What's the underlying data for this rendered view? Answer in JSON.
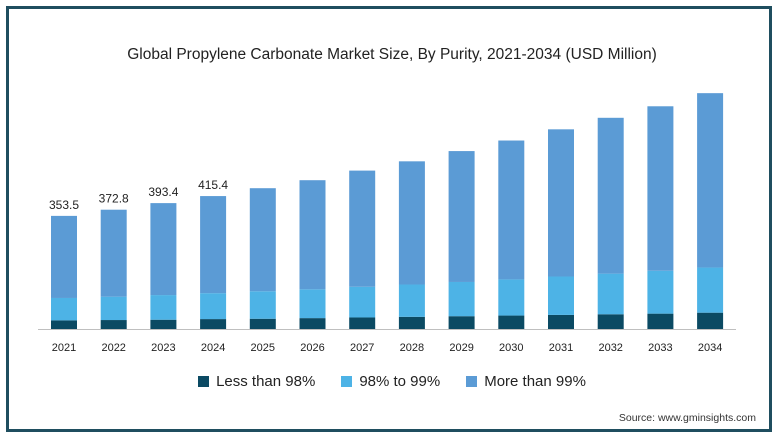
{
  "chart_data": {
    "type": "bar",
    "stacked": true,
    "title": "Global Propylene Carbonate Market Size, By Purity, 2021-2034 (USD Million)",
    "categories": [
      "2021",
      "2022",
      "2023",
      "2024",
      "2025",
      "2026",
      "2027",
      "2028",
      "2029",
      "2030",
      "2031",
      "2032",
      "2033",
      "2034"
    ],
    "series": [
      {
        "name": "Less than 98%",
        "color": "#0b4a63",
        "values": [
          27,
          28,
          29,
          31,
          32,
          34,
          36,
          38,
          40,
          42,
          44,
          46,
          48,
          51
        ]
      },
      {
        "name": "98% to 99%",
        "color": "#4db3e6",
        "values": [
          70,
          73,
          77,
          81,
          86,
          90,
          96,
          101,
          107,
          113,
          120,
          127,
          134,
          141
        ]
      },
      {
        "name": "More than 99%",
        "color": "#5b9bd5",
        "values": [
          256.5,
          271.8,
          287.4,
          303.4,
          322,
          341,
          363,
          385,
          409,
          434,
          460,
          487,
          514,
          545
        ]
      }
    ],
    "totals_labels": [
      "353.5",
      "372.8",
      "393.4",
      "415.4",
      "",
      "",
      "",
      "",
      "",
      "",
      "",
      "",
      "",
      ""
    ],
    "ylim": [
      0,
      800
    ],
    "axis_color": "#bfbfbf",
    "grid": false,
    "legend_position": "bottom"
  },
  "source_text": "Source: www.gminsights.com"
}
